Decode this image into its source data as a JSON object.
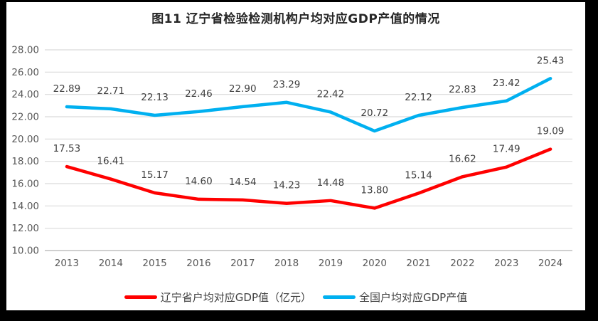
{
  "title": "图11 辽宁省检验检测机构户均对应GDP产值的情况",
  "colors": {
    "liaoning_line": "#FF0000",
    "national_line": "#00B0F0",
    "gridline": "#D9D9D9",
    "axis_line": "#BFBFBF",
    "tick_text": "#595959",
    "data_label_text": "#404040",
    "title_text": "#262626",
    "frame": "#000000"
  },
  "chart_data": {
    "type": "line",
    "title": "图11 辽宁省检验检测机构户均对应GDP产值的情况",
    "categories": [
      "2013",
      "2014",
      "2015",
      "2016",
      "2017",
      "2018",
      "2019",
      "2020",
      "2021",
      "2022",
      "2023",
      "2024"
    ],
    "series": [
      {
        "name": "辽宁省户均对应GDP值（亿元）",
        "color": "#FF0000",
        "values": [
          17.53,
          16.41,
          15.17,
          14.6,
          14.54,
          14.23,
          14.48,
          13.8,
          15.14,
          16.62,
          17.49,
          19.09
        ]
      },
      {
        "name": "全国户均对应GDP产值",
        "color": "#00B0F0",
        "values": [
          22.89,
          22.71,
          22.13,
          22.46,
          22.9,
          23.29,
          22.42,
          20.72,
          22.12,
          22.83,
          23.42,
          25.43
        ]
      }
    ],
    "ylim": [
      10,
      28
    ],
    "ytick_step": 2,
    "ytick_labels": [
      "10.00",
      "12.00",
      "14.00",
      "16.00",
      "18.00",
      "20.00",
      "22.00",
      "24.00",
      "26.00",
      "28.00"
    ],
    "grid": true,
    "vertical_grid": false,
    "data_labels": true,
    "data_label_decimals": 2,
    "legend_position": "bottom"
  }
}
